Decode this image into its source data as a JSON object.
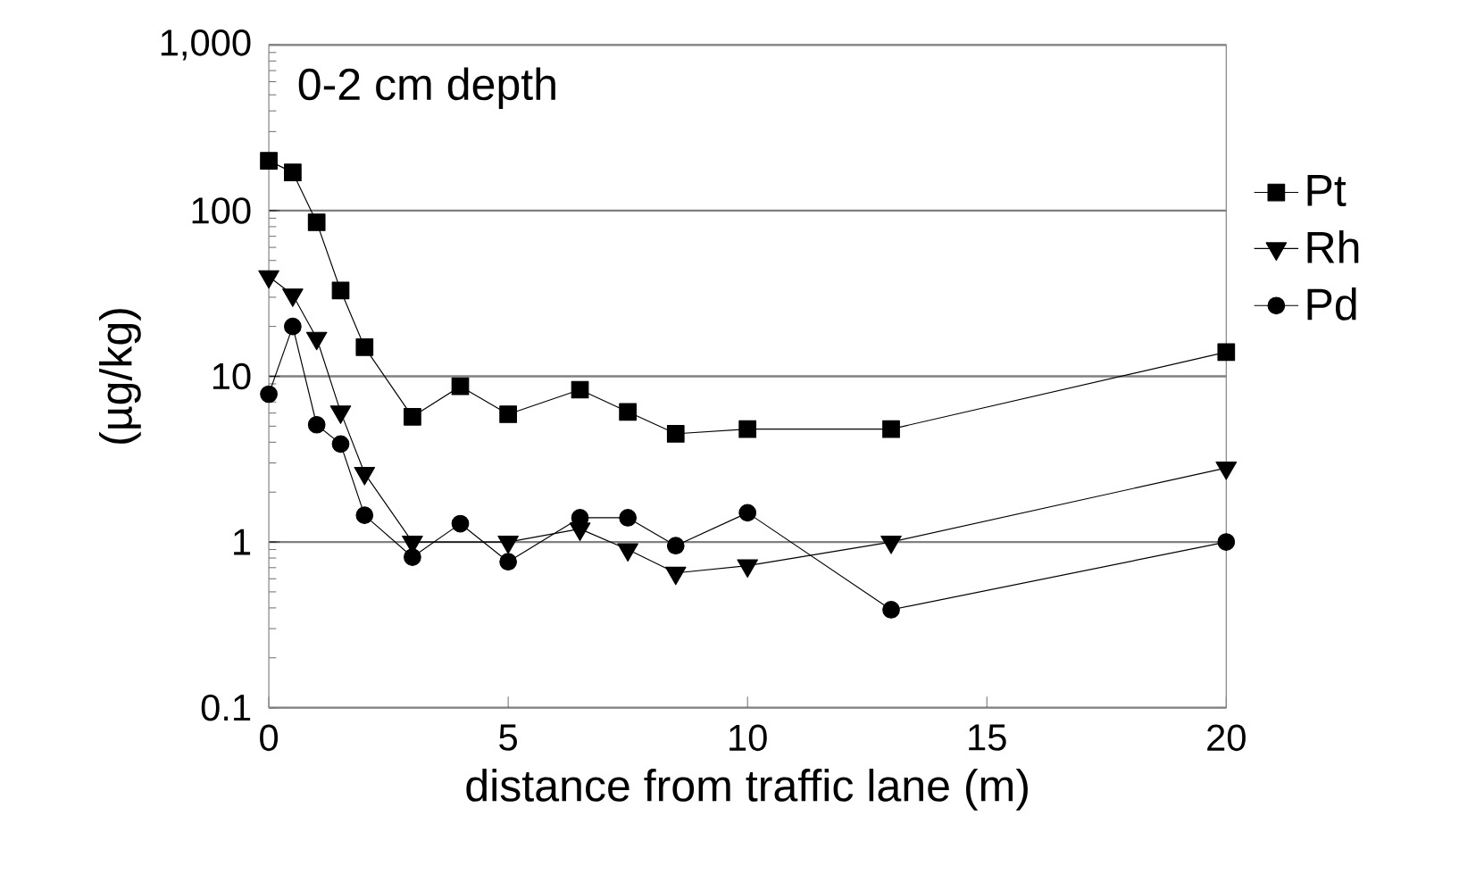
{
  "chart_data": {
    "type": "line",
    "xlabel": "distance from traffic lane (m)",
    "ylabel": "(µg/kg)",
    "annotations": [
      "0-2 cm depth"
    ],
    "log": "y",
    "grid": "y",
    "legend": "right",
    "line_style": "solid",
    "xlim": [
      0,
      20
    ],
    "xticks": [
      0,
      5,
      10,
      15,
      20
    ],
    "ylim": [
      0.1,
      1000
    ],
    "yticks": [
      {
        "value": 0.1,
        "label": "0.1"
      },
      {
        "value": 1,
        "label": "1"
      },
      {
        "value": 10,
        "label": "10"
      },
      {
        "value": 100,
        "label": "100"
      },
      {
        "value": 1000,
        "label": "1,000"
      }
    ],
    "series": [
      {
        "name": "Pt",
        "color": "#000000",
        "marker": "square",
        "x": [
          0,
          0.5,
          1,
          1.5,
          2,
          3,
          4,
          5,
          6.5,
          7.5,
          8.5,
          10,
          13,
          20
        ],
        "values": [
          200,
          170,
          85,
          33,
          15,
          5.7,
          8.7,
          5.9,
          8.3,
          6.1,
          4.5,
          4.8,
          4.8,
          14
        ]
      },
      {
        "name": "Rh",
        "color": "#000000",
        "marker": "triangle",
        "x": [
          0,
          0.5,
          1,
          1.5,
          2,
          3,
          5,
          6.5,
          7.5,
          8.5,
          10,
          13,
          20
        ],
        "values": [
          40,
          31,
          17,
          6.1,
          2.6,
          1.0,
          1.0,
          1.2,
          0.9,
          0.65,
          0.72,
          1.0,
          2.8
        ]
      },
      {
        "name": "Pd",
        "color": "#000000",
        "marker": "circle",
        "x": [
          0,
          0.5,
          1,
          1.5,
          2,
          3,
          4,
          5,
          6.5,
          7.5,
          8.5,
          10,
          13,
          20
        ],
        "values": [
          7.8,
          20,
          5.1,
          3.9,
          1.45,
          0.81,
          1.29,
          0.76,
          1.4,
          1.4,
          0.95,
          1.5,
          0.39,
          1.0
        ]
      }
    ]
  }
}
